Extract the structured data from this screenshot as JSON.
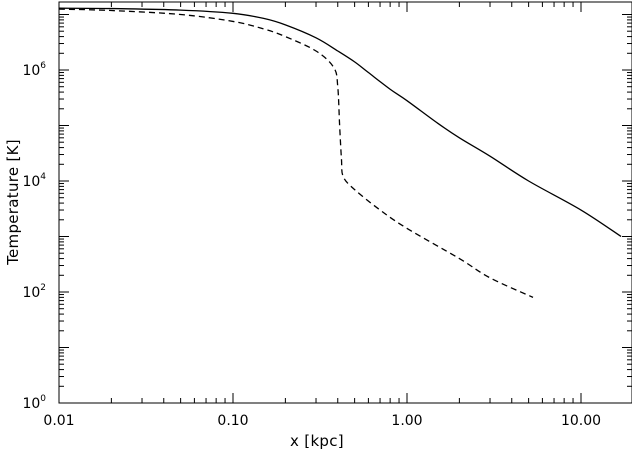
{
  "chart_data": {
    "type": "line",
    "title": "",
    "xlabel": "x [kpc]",
    "ylabel": "Temperature [K]",
    "xscale": "log",
    "yscale": "log",
    "xlim": [
      0.01,
      20
    ],
    "ylim": [
      1,
      30000000
    ],
    "grid": false,
    "legend": "none",
    "x_ticks": [
      {
        "value": 0.01,
        "label": "0.01"
      },
      {
        "value": 0.1,
        "label": "0.10"
      },
      {
        "value": 1,
        "label": "1.00"
      },
      {
        "value": 10,
        "label": "10.00"
      }
    ],
    "y_ticks": [
      {
        "value": 1,
        "base": "10",
        "exp": "0"
      },
      {
        "value": 100,
        "base": "10",
        "exp": "2"
      },
      {
        "value": 10000,
        "base": "10",
        "exp": "4"
      },
      {
        "value": 1000000,
        "base": "10",
        "exp": "6"
      }
    ],
    "series": [
      {
        "style": "solid",
        "color": "#000000",
        "points": [
          [
            0.01,
            13000000
          ],
          [
            0.02,
            12800000
          ],
          [
            0.05,
            12000000
          ],
          [
            0.1,
            10500000
          ],
          [
            0.15,
            8500000
          ],
          [
            0.2,
            6500000
          ],
          [
            0.3,
            3800000
          ],
          [
            0.4,
            2200000
          ],
          [
            0.5,
            1400000
          ],
          [
            0.6,
            900000
          ],
          [
            0.8,
            450000
          ],
          [
            1.0,
            280000
          ],
          [
            1.5,
            110000
          ],
          [
            2.0,
            60000
          ],
          [
            3.0,
            28000
          ],
          [
            5.0,
            10000
          ],
          [
            10.0,
            3000
          ],
          [
            17.0,
            1000
          ]
        ]
      },
      {
        "style": "dashed",
        "color": "#000000",
        "points": [
          [
            0.01,
            12500000
          ],
          [
            0.02,
            11800000
          ],
          [
            0.05,
            10000000
          ],
          [
            0.1,
            7500000
          ],
          [
            0.15,
            5500000
          ],
          [
            0.2,
            4000000
          ],
          [
            0.3,
            2200000
          ],
          [
            0.38,
            1100000
          ],
          [
            0.4,
            500000
          ],
          [
            0.41,
            100000
          ],
          [
            0.42,
            25000
          ],
          [
            0.43,
            12000
          ],
          [
            0.5,
            7000
          ],
          [
            0.7,
            3000
          ],
          [
            1.0,
            1400
          ],
          [
            2.0,
            400
          ],
          [
            3.0,
            180
          ],
          [
            5.3,
            80
          ]
        ]
      }
    ]
  }
}
